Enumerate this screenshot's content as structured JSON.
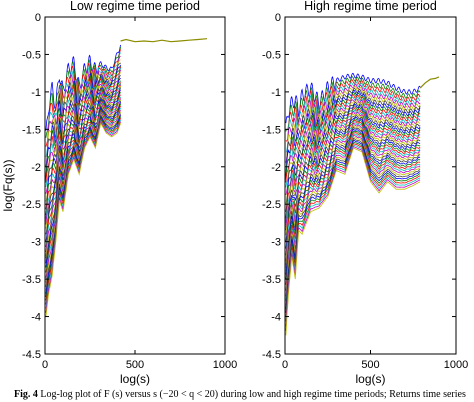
{
  "chart_data": [
    {
      "type": "line",
      "title": "Low regime time period",
      "xlabel": "log(s)",
      "ylabel": "log(Fq(s))",
      "xlim": [
        0,
        1000
      ],
      "ylim": [
        -4.5,
        0
      ],
      "xticks": [
        0,
        500,
        1000
      ],
      "yticks": [
        -4.5,
        -4,
        -3.5,
        -3,
        -2.5,
        -2,
        -1.5,
        -1,
        -0.5,
        0
      ],
      "grid": false,
      "legend": "none",
      "series_count": 41,
      "q_range": [
        -20,
        20
      ],
      "x": [
        5,
        20,
        40,
        60,
        80,
        100,
        130,
        160,
        190,
        220,
        250,
        280,
        310,
        340,
        370,
        400,
        420
      ],
      "y_upper": [
        -1.6,
        -1.2,
        -0.95,
        -1.2,
        -0.75,
        -1.0,
        -0.7,
        -0.62,
        -0.95,
        -0.7,
        -0.6,
        -0.72,
        -0.62,
        -0.68,
        -0.7,
        -0.5,
        -0.38
      ],
      "y_lower": [
        -4.0,
        -3.7,
        -3.45,
        -3.0,
        -2.45,
        -2.6,
        -2.1,
        -1.9,
        -2.1,
        -1.75,
        -1.6,
        -1.75,
        -1.42,
        -1.55,
        -1.6,
        -1.55,
        -1.42
      ],
      "converged": {
        "x": [
          420,
          450,
          500,
          550,
          600,
          650,
          700,
          750,
          800,
          850,
          900
        ],
        "y": [
          -0.32,
          -0.3,
          -0.33,
          -0.32,
          -0.33,
          -0.31,
          -0.33,
          -0.32,
          -0.31,
          -0.3,
          -0.29
        ]
      }
    },
    {
      "type": "line",
      "title": "High regime time period",
      "xlabel": "log(s)",
      "ylabel": "",
      "xlim": [
        0,
        1000
      ],
      "ylim": [
        -4.5,
        0
      ],
      "xticks": [
        0,
        500,
        1000
      ],
      "yticks": [
        -4.5,
        -4,
        -3.5,
        -3,
        -2.5,
        -2,
        -1.5,
        -1,
        -0.5,
        0
      ],
      "grid": false,
      "legend": "none",
      "series_count": 41,
      "q_range": [
        -20,
        20
      ],
      "x": [
        5,
        20,
        40,
        60,
        80,
        100,
        150,
        200,
        250,
        300,
        350,
        400,
        450,
        500,
        550,
        600,
        650,
        700,
        750,
        790
      ],
      "y_upper": [
        -1.5,
        -1.25,
        -1.15,
        -1.1,
        -1.25,
        -1.05,
        -0.95,
        -1.15,
        -0.95,
        -0.85,
        -0.8,
        -0.78,
        -0.8,
        -0.85,
        -0.85,
        -0.88,
        -0.95,
        -1.0,
        -1.0,
        -0.95
      ],
      "y_lower": [
        -4.25,
        -3.7,
        -3.2,
        -3.5,
        -2.85,
        -2.9,
        -2.6,
        -2.55,
        -2.4,
        -2.05,
        -2.1,
        -1.75,
        -1.8,
        -2.2,
        -2.35,
        -2.2,
        -2.3,
        -2.3,
        -2.25,
        -2.2
      ],
      "converged": {
        "x": [
          790,
          820,
          850,
          880,
          900
        ],
        "y": [
          -0.95,
          -0.88,
          -0.83,
          -0.82,
          -0.8
        ]
      }
    }
  ],
  "caption": {
    "label": "Fig. 4",
    "text": "Log-log plot of F (s) versus s (−20 < q < 20) during low and high regime time periods; Returns time series"
  }
}
